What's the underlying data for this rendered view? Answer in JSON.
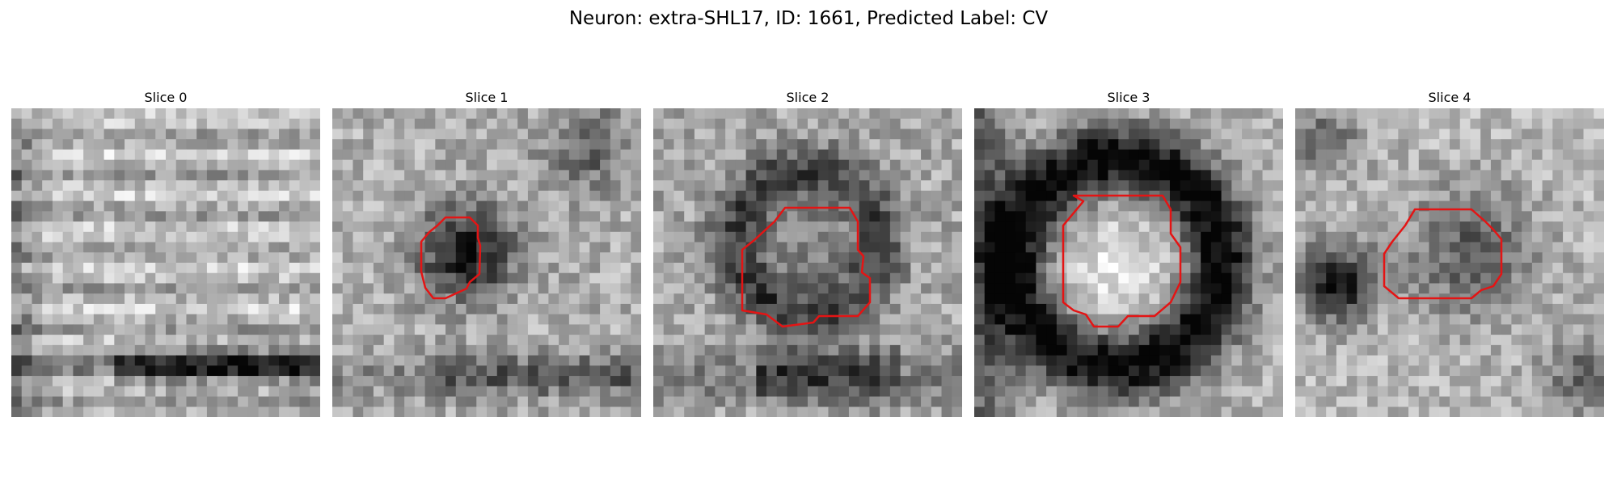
{
  "figure": {
    "title": "Neuron: extra-SHL17, ID: 1661, Predicted Label: CV"
  },
  "panels": [
    {
      "title": "Slice 0",
      "image": "grayscale-microscopy-patch",
      "contour": []
    },
    {
      "title": "Slice 1",
      "image": "grayscale-microscopy-patch",
      "contour": [
        [
          140,
          135
        ],
        [
          170,
          135
        ],
        [
          180,
          145
        ],
        [
          180,
          160
        ],
        [
          183,
          170
        ],
        [
          182,
          205
        ],
        [
          170,
          215
        ],
        [
          166,
          223
        ],
        [
          140,
          235
        ],
        [
          125,
          235
        ],
        [
          115,
          222
        ],
        [
          110,
          202
        ],
        [
          110,
          165
        ],
        [
          120,
          153
        ],
        [
          130,
          145
        ]
      ]
    },
    {
      "title": "Slice 2",
      "image": "grayscale-microscopy-patch",
      "contour": [
        [
          163,
          123
        ],
        [
          243,
          123
        ],
        [
          253,
          140
        ],
        [
          253,
          175
        ],
        [
          260,
          183
        ],
        [
          258,
          203
        ],
        [
          268,
          210
        ],
        [
          268,
          240
        ],
        [
          253,
          257
        ],
        [
          205,
          257
        ],
        [
          198,
          265
        ],
        [
          160,
          270
        ],
        [
          140,
          255
        ],
        [
          110,
          250
        ],
        [
          110,
          175
        ],
        [
          125,
          163
        ],
        [
          150,
          140
        ]
      ]
    },
    {
      "title": "Slice 3",
      "image": "grayscale-microscopy-patch",
      "contour": [
        [
          123,
          108
        ],
        [
          233,
          108
        ],
        [
          243,
          125
        ],
        [
          243,
          155
        ],
        [
          255,
          172
        ],
        [
          255,
          215
        ],
        [
          243,
          240
        ],
        [
          223,
          257
        ],
        [
          190,
          257
        ],
        [
          178,
          270
        ],
        [
          148,
          270
        ],
        [
          138,
          255
        ],
        [
          123,
          250
        ],
        [
          110,
          240
        ],
        [
          110,
          145
        ],
        [
          135,
          115
        ]
      ]
    },
    {
      "title": "Slice 4",
      "image": "grayscale-microscopy-patch",
      "contour": [
        [
          148,
          125
        ],
        [
          218,
          125
        ],
        [
          235,
          140
        ],
        [
          245,
          150
        ],
        [
          255,
          162
        ],
        [
          255,
          205
        ],
        [
          245,
          220
        ],
        [
          230,
          225
        ],
        [
          218,
          235
        ],
        [
          128,
          235
        ],
        [
          110,
          220
        ],
        [
          110,
          180
        ],
        [
          120,
          165
        ],
        [
          128,
          155
        ],
        [
          136,
          145
        ]
      ]
    }
  ],
  "colors": {
    "contour": "#e41414"
  }
}
